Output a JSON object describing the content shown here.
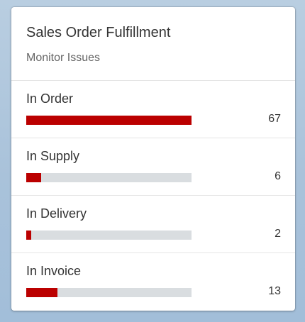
{
  "card": {
    "title": "Sales Order Fulfillment",
    "subtitle": "Monitor Issues",
    "bar_color": "#bb0000",
    "track_color": "#d9dde0",
    "rows": [
      {
        "label": "In Order",
        "value": "67",
        "fill": 1.0
      },
      {
        "label": "In Supply",
        "value": "6",
        "fill": 0.09
      },
      {
        "label": "In Delivery",
        "value": "2",
        "fill": 0.03
      },
      {
        "label": "In Invoice",
        "value": "13",
        "fill": 0.19
      }
    ]
  }
}
